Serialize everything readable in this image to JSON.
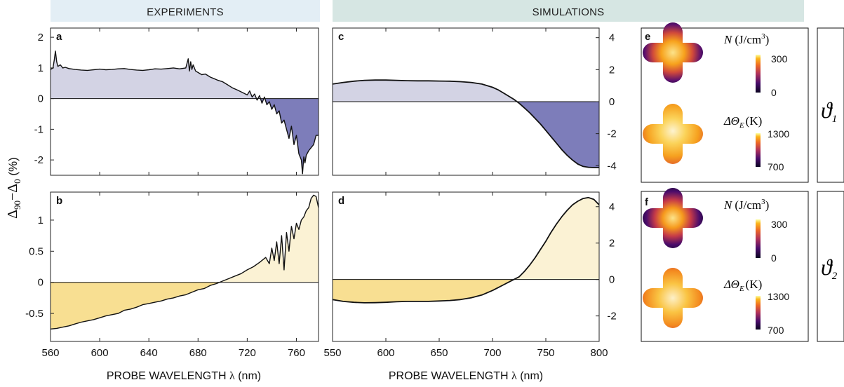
{
  "headers": {
    "experiments": "EXPERIMENTS",
    "simulations": "SIMULATIONS"
  },
  "colors": {
    "header_left_bg": "#e3eef5",
    "header_right_bg": "#d6e6e3",
    "purple_light": "#d3d3e4",
    "purple_dark": "#7d7dba",
    "yellow_dark": "#f8df92",
    "yellow_light": "#fbf2d4",
    "axis": "#111111"
  },
  "y_axis_label": {
    "delta": "Δ",
    "sub_a": "90",
    "minus": "−",
    "sub_b": "0",
    "unit": " (%)"
  },
  "x_axis_label": {
    "prefix": "PROBE WAVELENGTH ",
    "lambda": "λ",
    "unit": " (nm)"
  },
  "right_panels": {
    "e": {
      "letter": "e",
      "symbol": "ϑ",
      "symbol_sub": "1"
    },
    "f": {
      "letter": "f",
      "symbol": "ϑ",
      "symbol_sub": "2"
    }
  },
  "colorbar_labels": {
    "n_var": "N",
    "n_unit": "(J/cm",
    "n_sup": "3",
    "n_close": ")",
    "t_var": "ΔΘ",
    "t_sub": "E",
    "t_unit": "(K)"
  },
  "chart_data": [
    {
      "id": "a",
      "panel_letter": "a",
      "type": "area",
      "xlabel": "",
      "ylabel": "Δ90−Δ0 (%)",
      "xlim": [
        560,
        778
      ],
      "ylim": [
        -2.5,
        2.3
      ],
      "y_ticks": [
        -2,
        -1,
        0,
        1,
        2
      ],
      "y_tick_labels": [
        "-2",
        "-1",
        "0",
        "1",
        "2"
      ],
      "x_ticks": [
        560,
        600,
        640,
        680,
        720,
        760
      ],
      "series": [
        {
          "x": [
            560,
            562,
            563,
            564,
            565,
            566,
            568,
            570,
            572,
            575,
            580,
            585,
            590,
            595,
            600,
            605,
            610,
            615,
            620,
            625,
            630,
            635,
            640,
            645,
            650,
            655,
            660,
            665,
            670,
            672,
            673,
            674,
            675,
            676,
            678,
            680,
            683,
            686,
            690,
            693,
            696,
            700,
            704,
            708,
            712,
            716,
            720,
            722,
            724,
            726,
            728,
            730,
            732,
            734,
            736,
            738,
            740,
            742,
            744,
            746,
            748,
            750,
            752,
            754,
            756,
            758,
            760,
            762,
            764,
            765,
            766,
            767,
            768,
            770,
            772,
            774,
            776,
            778
          ],
          "y": [
            0.95,
            1.0,
            1.25,
            1.55,
            1.2,
            1.05,
            1.1,
            1.0,
            1.02,
            0.98,
            0.95,
            0.93,
            0.92,
            0.94,
            0.96,
            0.94,
            0.95,
            0.97,
            0.98,
            0.95,
            0.93,
            0.92,
            0.94,
            0.97,
            0.96,
            0.98,
            1.0,
            0.97,
            1.0,
            1.3,
            0.9,
            1.2,
            0.95,
            1.1,
            0.9,
            0.85,
            0.78,
            0.8,
            0.7,
            0.65,
            0.6,
            0.55,
            0.45,
            0.35,
            0.28,
            0.2,
            0.12,
            0.25,
            0.05,
            0.15,
            -0.05,
            0.1,
            -0.15,
            0.05,
            -0.2,
            -0.1,
            -0.35,
            -0.2,
            -0.5,
            -0.4,
            -0.8,
            -0.7,
            -1.0,
            -1.3,
            -0.9,
            -1.5,
            -1.2,
            -1.8,
            -2.0,
            -2.45,
            -1.9,
            -2.1,
            -1.85,
            -1.7,
            -1.6,
            -1.5,
            -1.2,
            -1.2
          ]
        }
      ]
    },
    {
      "id": "b",
      "panel_letter": "b",
      "type": "area",
      "xlabel": "PROBE WAVELENGTH λ (nm)",
      "ylabel": "Δ90−Δ0 (%)",
      "xlim": [
        560,
        778
      ],
      "ylim": [
        -0.95,
        1.45
      ],
      "y_ticks": [
        -0.5,
        0,
        0.5,
        1
      ],
      "y_tick_labels": [
        "-0.5",
        "0",
        "0.5",
        "1"
      ],
      "x_ticks": [
        560,
        600,
        640,
        680,
        720,
        760
      ],
      "x_tick_labels": [
        "560",
        "600",
        "640",
        "680",
        "720",
        "760"
      ],
      "series": [
        {
          "x": [
            560,
            565,
            570,
            575,
            580,
            585,
            590,
            595,
            600,
            605,
            610,
            615,
            620,
            625,
            630,
            635,
            640,
            645,
            650,
            655,
            660,
            665,
            670,
            675,
            680,
            685,
            690,
            695,
            700,
            705,
            710,
            715,
            720,
            725,
            730,
            735,
            738,
            740,
            742,
            744,
            746,
            748,
            750,
            752,
            754,
            756,
            758,
            760,
            762,
            764,
            766,
            768,
            770,
            772,
            774,
            776,
            778
          ],
          "y": [
            -0.75,
            -0.74,
            -0.72,
            -0.7,
            -0.67,
            -0.64,
            -0.62,
            -0.6,
            -0.57,
            -0.54,
            -0.52,
            -0.5,
            -0.45,
            -0.43,
            -0.4,
            -0.36,
            -0.34,
            -0.32,
            -0.3,
            -0.27,
            -0.25,
            -0.22,
            -0.2,
            -0.16,
            -0.12,
            -0.1,
            -0.05,
            -0.02,
            0.02,
            0.06,
            0.1,
            0.14,
            0.2,
            0.25,
            0.32,
            0.4,
            0.3,
            0.55,
            0.35,
            0.65,
            0.3,
            0.75,
            0.2,
            0.8,
            0.5,
            0.9,
            0.7,
            0.95,
            0.85,
            1.0,
            1.05,
            1.15,
            1.2,
            1.35,
            1.4,
            1.38,
            1.2
          ]
        }
      ]
    },
    {
      "id": "c",
      "panel_letter": "c",
      "type": "area",
      "xlabel": "",
      "ylabel": "",
      "xlim": [
        550,
        800
      ],
      "ylim": [
        -4.6,
        4.6
      ],
      "y_ticks": [
        -4,
        -2,
        0,
        2,
        4
      ],
      "y_tick_labels": [
        "-4",
        "-2",
        "0",
        "2",
        "4"
      ],
      "x_ticks": [
        550,
        600,
        650,
        700,
        750,
        800
      ],
      "series": [
        {
          "x": [
            550,
            560,
            570,
            580,
            590,
            600,
            610,
            620,
            630,
            640,
            650,
            660,
            670,
            680,
            690,
            700,
            705,
            710,
            715,
            720,
            725,
            730,
            735,
            740,
            745,
            750,
            755,
            760,
            765,
            770,
            775,
            780,
            785,
            790,
            795,
            800
          ],
          "y": [
            1.1,
            1.2,
            1.28,
            1.33,
            1.35,
            1.35,
            1.33,
            1.31,
            1.3,
            1.3,
            1.29,
            1.28,
            1.25,
            1.2,
            1.1,
            0.9,
            0.75,
            0.55,
            0.35,
            0.15,
            -0.1,
            -0.4,
            -0.7,
            -1.05,
            -1.4,
            -1.8,
            -2.2,
            -2.6,
            -3.0,
            -3.35,
            -3.65,
            -3.9,
            -4.05,
            -4.1,
            -4.12,
            -4.12
          ]
        }
      ]
    },
    {
      "id": "d",
      "panel_letter": "d",
      "type": "area",
      "xlabel": "PROBE WAVELENGTH λ (nm)",
      "ylabel": "",
      "xlim": [
        550,
        800
      ],
      "ylim": [
        -3.4,
        4.8
      ],
      "y_ticks": [
        -2,
        0,
        2,
        4
      ],
      "y_tick_labels": [
        "-2",
        "0",
        "2",
        "4"
      ],
      "x_ticks": [
        550,
        600,
        650,
        700,
        750,
        800
      ],
      "x_tick_labels": [
        "550",
        "600",
        "650",
        "700",
        "750",
        "800"
      ],
      "series": [
        {
          "x": [
            550,
            560,
            570,
            580,
            590,
            600,
            610,
            620,
            630,
            640,
            650,
            660,
            670,
            680,
            690,
            700,
            705,
            710,
            715,
            720,
            725,
            730,
            735,
            740,
            745,
            750,
            755,
            760,
            765,
            770,
            775,
            780,
            785,
            790,
            795,
            800
          ],
          "y": [
            -1.1,
            -1.2,
            -1.25,
            -1.28,
            -1.27,
            -1.25,
            -1.22,
            -1.2,
            -1.2,
            -1.2,
            -1.18,
            -1.15,
            -1.1,
            -1.0,
            -0.85,
            -0.6,
            -0.45,
            -0.3,
            -0.15,
            0.0,
            0.15,
            0.45,
            0.8,
            1.2,
            1.65,
            2.1,
            2.6,
            3.05,
            3.45,
            3.8,
            4.1,
            4.3,
            4.45,
            4.5,
            4.4,
            4.1
          ]
        }
      ]
    }
  ]
}
